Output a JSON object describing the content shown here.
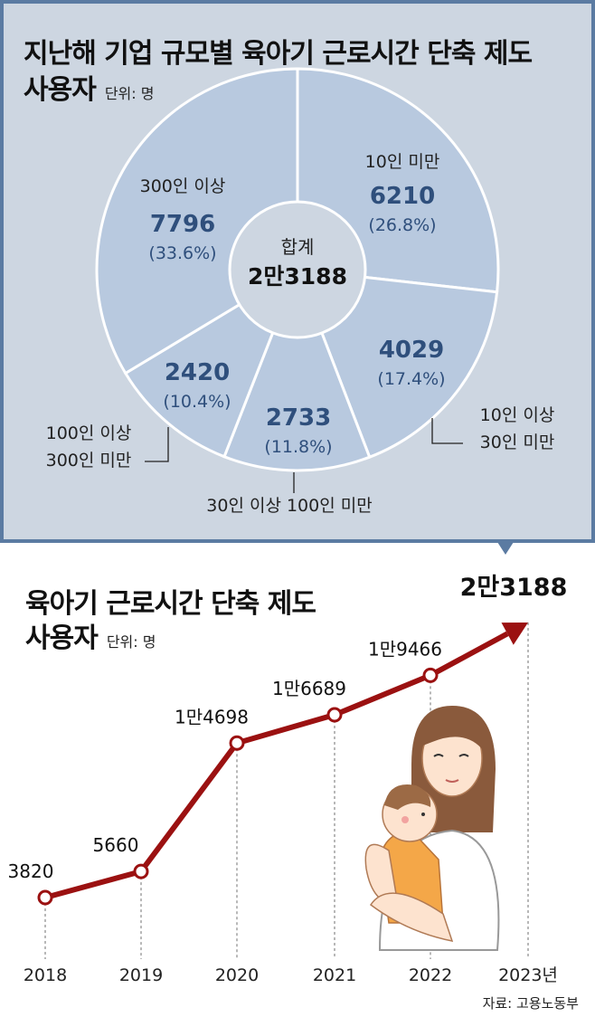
{
  "pie": {
    "title_line1": "지난해 기업 규모별 육아기 근로시간 단축 제도",
    "title_line2": "사용자",
    "unit": "단위: 명",
    "center_label": "합계",
    "center_value": "2만3188"
  },
  "line": {
    "title_line1": "육아기 근로시간 단축 제도",
    "title_line2": "사용자",
    "unit": "단위: 명",
    "highlight_value": "2만3188"
  },
  "source": "자료: 고용노동부",
  "chart_data": [
    {
      "type": "pie",
      "donut": true,
      "colors": {
        "fill": "#b8c9df",
        "edge": "#ffffff",
        "value_text": "#2f4f7c"
      },
      "slices": [
        {
          "name": "10인 미만",
          "value": 6210,
          "value_label": "6210",
          "percent_label": "(26.8%)",
          "label_lines": [
            "10인 미만"
          ]
        },
        {
          "name": "10인 이상 30인 미만",
          "value": 4029,
          "value_label": "4029",
          "percent_label": "(17.4%)",
          "label_lines": [
            "10인 이상",
            "30인 미만"
          ]
        },
        {
          "name": "30인 이상 100인 미만",
          "value": 2733,
          "value_label": "2733",
          "percent_label": "(11.8%)",
          "label_lines": [
            "30인 이상 100인 미만"
          ]
        },
        {
          "name": "100인 이상 300인 미만",
          "value": 2420,
          "value_label": "2420",
          "percent_label": "(10.4%)",
          "label_lines": [
            "100인 이상",
            "300인 미만"
          ]
        },
        {
          "name": "300인 이상",
          "value": 7796,
          "value_label": "7796",
          "percent_label": "(33.6%)",
          "label_lines": [
            "300인 이상"
          ]
        }
      ]
    },
    {
      "type": "line",
      "x": [
        "2018",
        "2019",
        "2020",
        "2021",
        "2022",
        "2023년"
      ],
      "values": [
        3820,
        5660,
        14698,
        16689,
        19466,
        23188
      ],
      "value_labels": [
        "3820",
        "5660",
        "1만4698",
        "1만6689",
        "1만9466",
        ""
      ],
      "colors": {
        "line": "#9b1111",
        "grid": "#888888"
      },
      "arrow_to_last": true,
      "grid": false
    }
  ]
}
